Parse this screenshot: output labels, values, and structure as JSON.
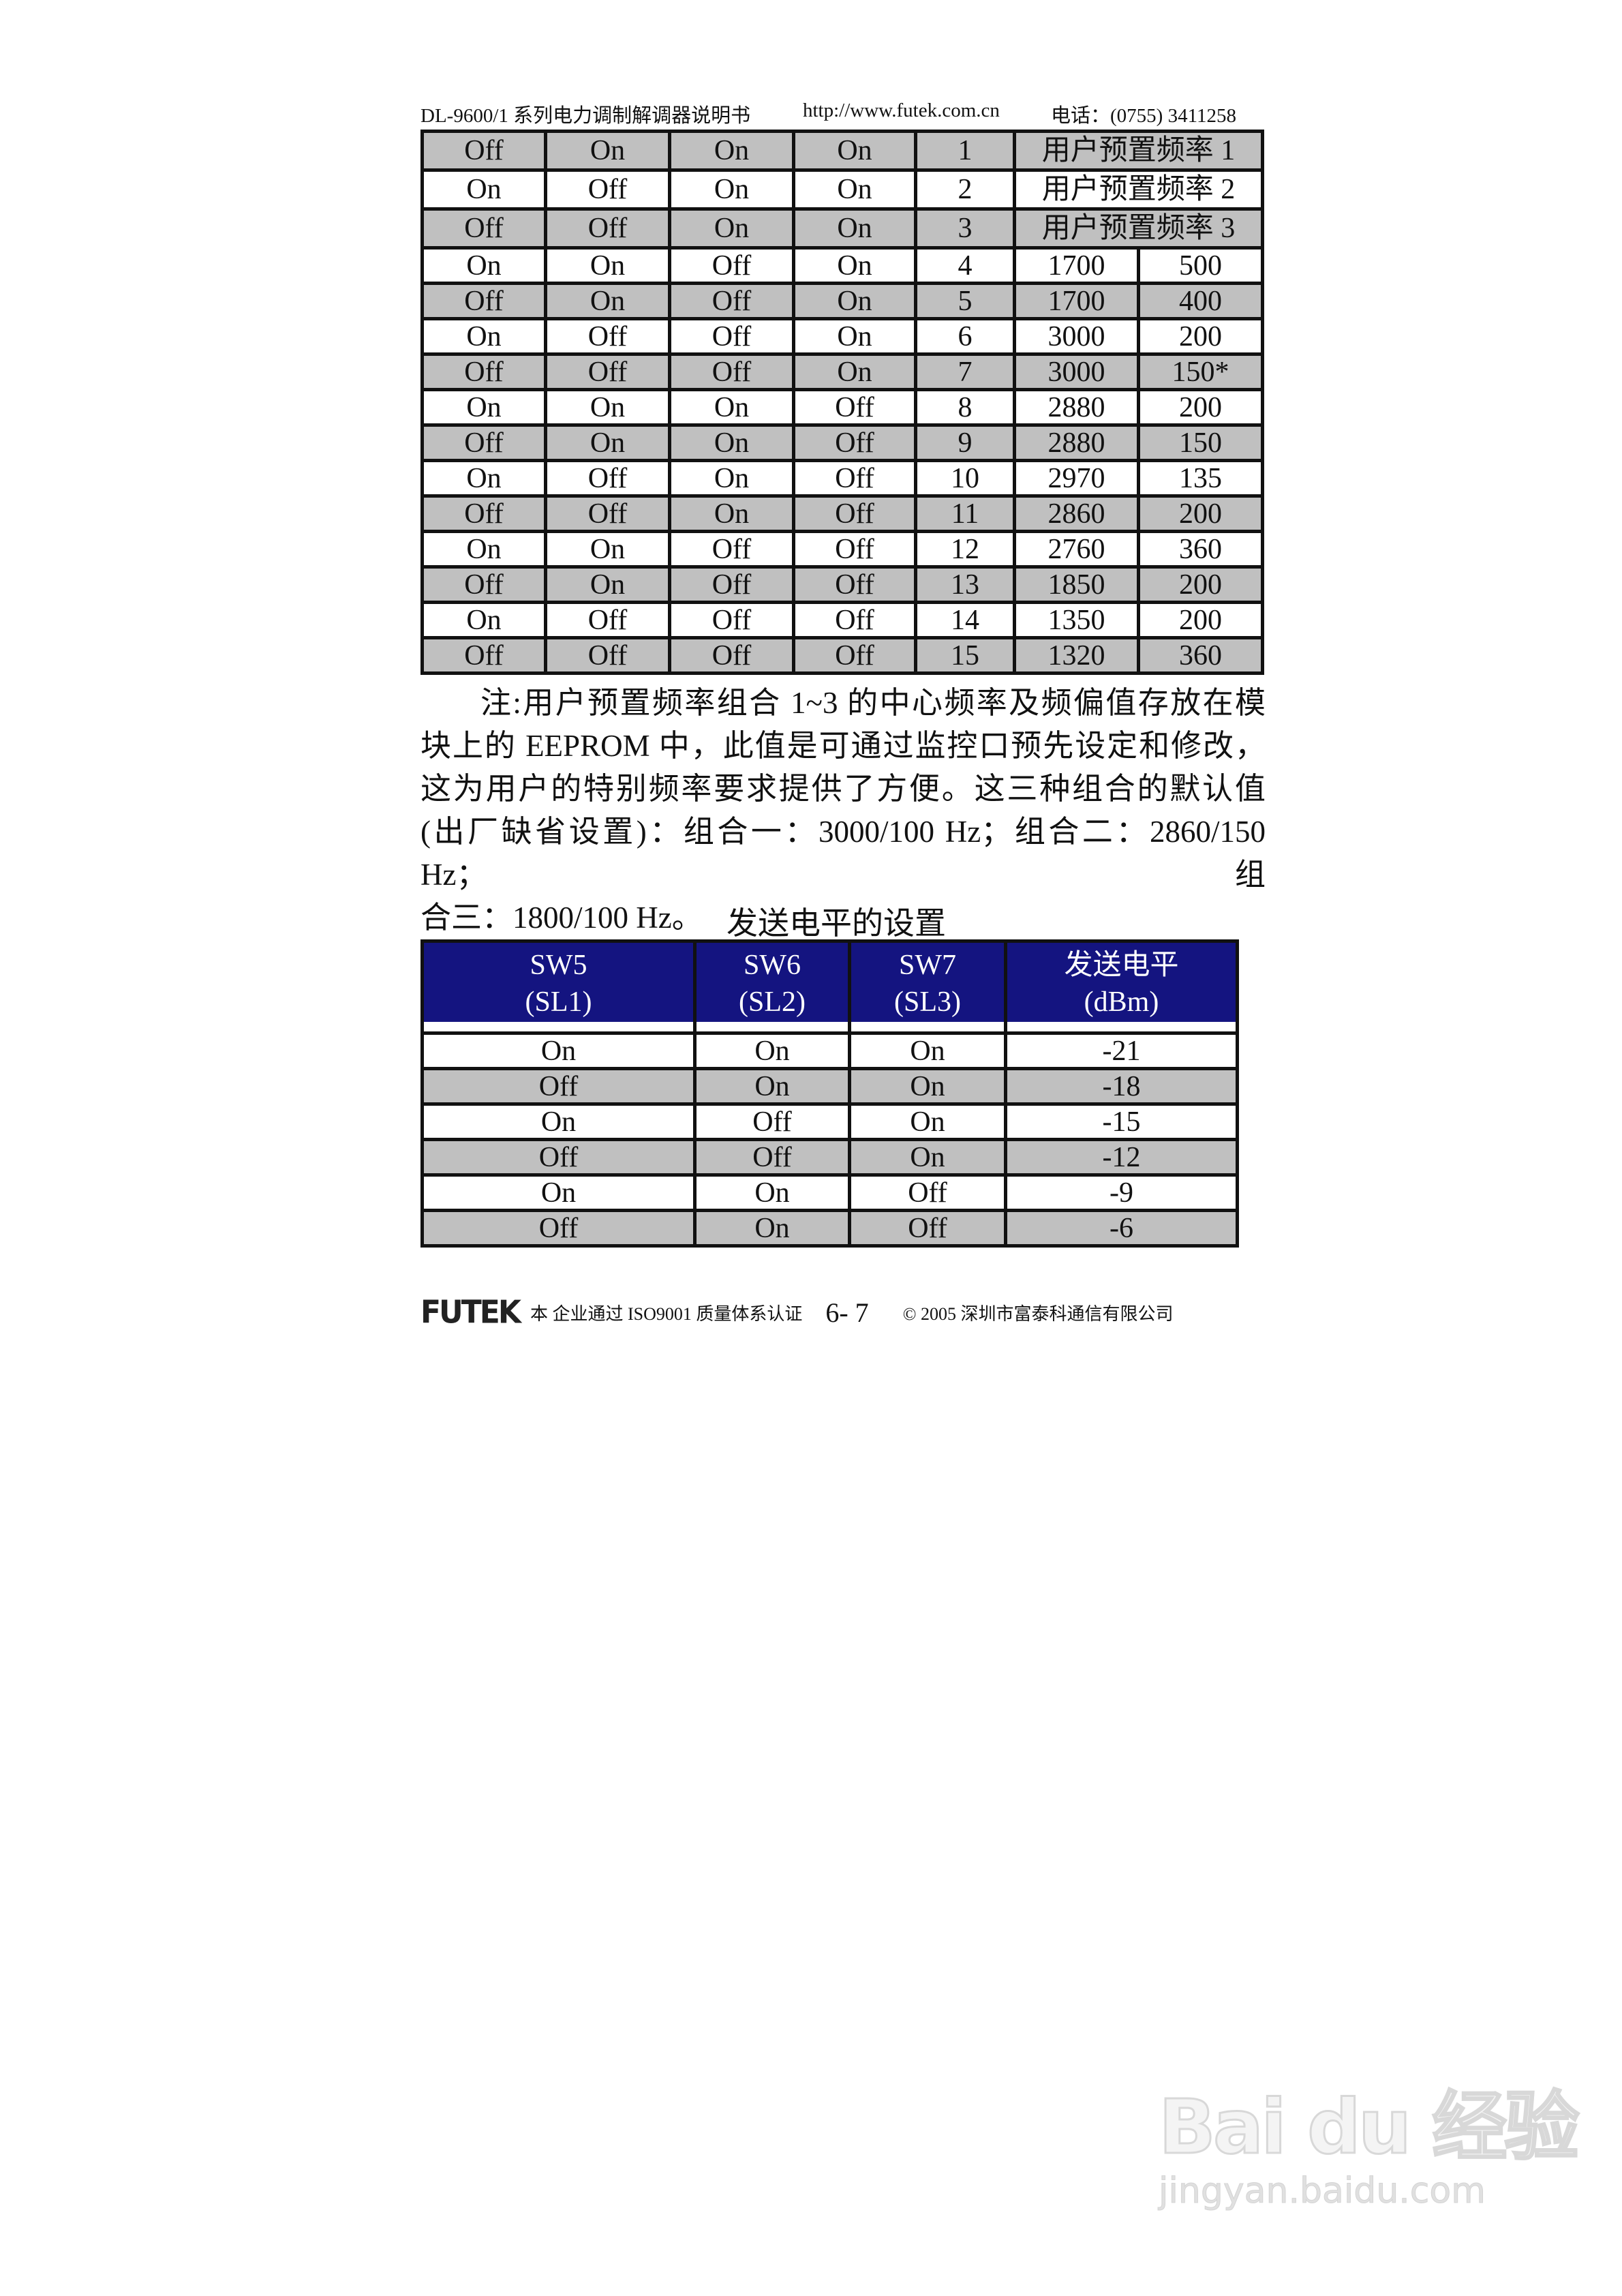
{
  "header": {
    "doc_title": "DL-9600/1 系列电力调制解调器说明书",
    "url": "http://www.futek.com.cn",
    "phone": "电话：(0755) 3411258"
  },
  "table1": {
    "preset_rows": [
      {
        "sw": [
          "Off",
          "On",
          "On",
          "On"
        ],
        "no": "1",
        "label": "用户预置频率 1",
        "shade": true
      },
      {
        "sw": [
          "On",
          "Off",
          "On",
          "On"
        ],
        "no": "2",
        "label": "用户预置频率 2",
        "shade": false
      },
      {
        "sw": [
          "Off",
          "Off",
          "On",
          "On"
        ],
        "no": "3",
        "label": "用户预置频率 3",
        "shade": true
      }
    ],
    "rows": [
      {
        "sw": [
          "On",
          "On",
          "Off",
          "On"
        ],
        "no": "4",
        "freq": "1700",
        "dev": "500"
      },
      {
        "sw": [
          "Off",
          "On",
          "Off",
          "On"
        ],
        "no": "5",
        "freq": "1700",
        "dev": "400"
      },
      {
        "sw": [
          "On",
          "Off",
          "Off",
          "On"
        ],
        "no": "6",
        "freq": "3000",
        "dev": "200"
      },
      {
        "sw": [
          "Off",
          "Off",
          "Off",
          "On"
        ],
        "no": "7",
        "freq": "3000",
        "dev": "150*"
      },
      {
        "sw": [
          "On",
          "On",
          "On",
          "Off"
        ],
        "no": "8",
        "freq": "2880",
        "dev": "200"
      },
      {
        "sw": [
          "Off",
          "On",
          "On",
          "Off"
        ],
        "no": "9",
        "freq": "2880",
        "dev": "150"
      },
      {
        "sw": [
          "On",
          "Off",
          "On",
          "Off"
        ],
        "no": "10",
        "freq": "2970",
        "dev": "135"
      },
      {
        "sw": [
          "Off",
          "Off",
          "On",
          "Off"
        ],
        "no": "11",
        "freq": "2860",
        "dev": "200"
      },
      {
        "sw": [
          "On",
          "On",
          "Off",
          "Off"
        ],
        "no": "12",
        "freq": "2760",
        "dev": "360"
      },
      {
        "sw": [
          "Off",
          "On",
          "Off",
          "Off"
        ],
        "no": "13",
        "freq": "1850",
        "dev": "200"
      },
      {
        "sw": [
          "On",
          "Off",
          "Off",
          "Off"
        ],
        "no": "14",
        "freq": "1350",
        "dev": "200"
      },
      {
        "sw": [
          "Off",
          "Off",
          "Off",
          "Off"
        ],
        "no": "15",
        "freq": "1320",
        "dev": "360"
      }
    ]
  },
  "note": {
    "lines": [
      "注:用户预置频率组合 1~3 的中心频率及频偏值存放在模",
      "块上的 EEPROM 中，此值是可通过监控口预先设定和修改，",
      "这为用户的特别频率要求提供了方便。这三种组合的默认值",
      "(出厂缺省设置)：组合一：3000/100 Hz；组合二：2860/150 Hz；组",
      "合三：1800/100 Hz。"
    ]
  },
  "table2": {
    "title": "发送电平的设置",
    "headers": [
      [
        "SW5",
        "(SL1)"
      ],
      [
        "SW6",
        "(SL2)"
      ],
      [
        "SW7",
        "(SL3)"
      ],
      [
        "发送电平",
        "(dBm)"
      ]
    ],
    "rows": [
      [
        "On",
        "On",
        "On",
        "-21"
      ],
      [
        "Off",
        "On",
        "On",
        "-18"
      ],
      [
        "On",
        "Off",
        "On",
        "-15"
      ],
      [
        "Off",
        "Off",
        "On",
        "-12"
      ],
      [
        "On",
        "On",
        "Off",
        "-9"
      ],
      [
        "Off",
        "On",
        "Off",
        "-6"
      ]
    ],
    "header_color": "#141480",
    "shade_color": "#c0c0c0"
  },
  "footer": {
    "logo": "FUTEK",
    "cert": "本 企业通过 ISO9001 质量体系认证",
    "page": "6- 7",
    "copyright": "© 2005 深圳市富泰科通信有限公司"
  },
  "watermark": {
    "brand": "Bai du 经验",
    "site": "jingyan.baidu.com"
  }
}
